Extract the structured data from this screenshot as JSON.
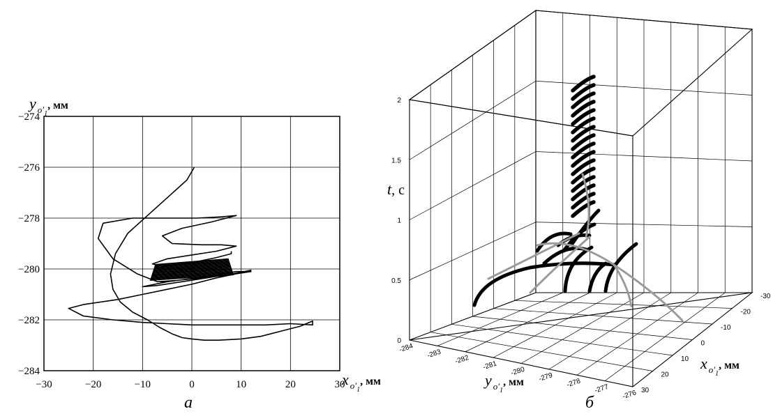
{
  "chart_data": [
    {
      "type": "line",
      "caption": "а",
      "xlabel": {
        "var": "x",
        "sub": "o",
        "subsub": "1",
        "prime": "′",
        "unit": ", мм"
      },
      "ylabel": {
        "var": "y",
        "sub": "o",
        "subsub": "1",
        "prime": "′",
        "unit": ", мм"
      },
      "xlim": [
        -30,
        30
      ],
      "ylim": [
        -284,
        -274
      ],
      "xticks": [
        "−30",
        "−20",
        "−10",
        "0",
        "10",
        "20",
        "30"
      ],
      "yticks": [
        "−274",
        "−276",
        "−278",
        "−280",
        "−282",
        "−284"
      ],
      "grid": true,
      "series": [
        {
          "x": [
            0.5,
            -1,
            -5,
            -9,
            -13,
            -15.5,
            -16.5,
            -16,
            -14.5,
            -12,
            -9,
            -6.5,
            -4,
            -2,
            0,
            2.5,
            5.5,
            10,
            14,
            18,
            22,
            24.5,
            24.5,
            20,
            15,
            10,
            5,
            0,
            -5,
            -10,
            -16,
            -22,
            -25,
            -22,
            -15,
            -10,
            -5,
            0,
            5,
            10,
            12,
            8,
            3,
            -2,
            -7,
            -10,
            -5,
            1,
            6,
            9,
            12,
            7,
            2,
            -3,
            -7,
            -11,
            -16,
            -19,
            -18,
            -12,
            -5,
            1,
            6,
            9,
            4,
            -2,
            -6,
            -4,
            2,
            6,
            9,
            5,
            0,
            -5,
            -8,
            -6,
            0,
            5,
            8,
            8
          ],
          "y": [
            -276.0,
            -276.5,
            -277.2,
            -277.9,
            -278.6,
            -279.4,
            -280.2,
            -280.8,
            -281.3,
            -281.7,
            -282.0,
            -282.3,
            -282.55,
            -282.7,
            -282.75,
            -282.8,
            -282.8,
            -282.75,
            -282.65,
            -282.45,
            -282.25,
            -282.05,
            -282.2,
            -282.15,
            -282.2,
            -282.2,
            -282.2,
            -282.2,
            -282.15,
            -282.1,
            -282.0,
            -281.85,
            -281.55,
            -281.4,
            -281.2,
            -281.0,
            -280.8,
            -280.6,
            -280.35,
            -280.15,
            -280.05,
            -280.2,
            -280.35,
            -280.5,
            -280.65,
            -280.7,
            -280.5,
            -280.35,
            -280.2,
            -280.1,
            -280.1,
            -280.25,
            -280.35,
            -280.45,
            -280.5,
            -280.2,
            -279.6,
            -278.8,
            -278.2,
            -278.0,
            -278.0,
            -278.0,
            -277.95,
            -277.9,
            -278.15,
            -278.4,
            -278.7,
            -279.0,
            -279.05,
            -279.05,
            -279.1,
            -279.3,
            -279.45,
            -279.6,
            -279.8,
            -279.9,
            -279.75,
            -279.55,
            -279.4,
            -279.3
          ]
        }
      ]
    },
    {
      "type": "line",
      "projection": "3d",
      "caption": "б",
      "xlabel": {
        "var": "x",
        "sub": "o",
        "subsub": "1",
        "prime": "′",
        "unit": ", мм"
      },
      "ylabel": {
        "var": "y",
        "sub": "o",
        "subsub": "1",
        "prime": "′",
        "unit": ", мм"
      },
      "zlabel": {
        "var": "t",
        "unit": ", с"
      },
      "xlim": [
        30,
        -30
      ],
      "ylim": [
        -284,
        -276
      ],
      "zlim": [
        0,
        2
      ],
      "xticks": [
        "-30",
        "-20",
        "-10",
        "0",
        "10",
        "20",
        "30"
      ],
      "yticks": [
        "-284",
        "-283",
        "-282",
        "-281",
        "-280",
        "-279",
        "-278",
        "-277",
        "-276"
      ],
      "zticks": [
        "0",
        "0.5",
        "1",
        "1.5",
        "2"
      ],
      "grid": true
    }
  ]
}
